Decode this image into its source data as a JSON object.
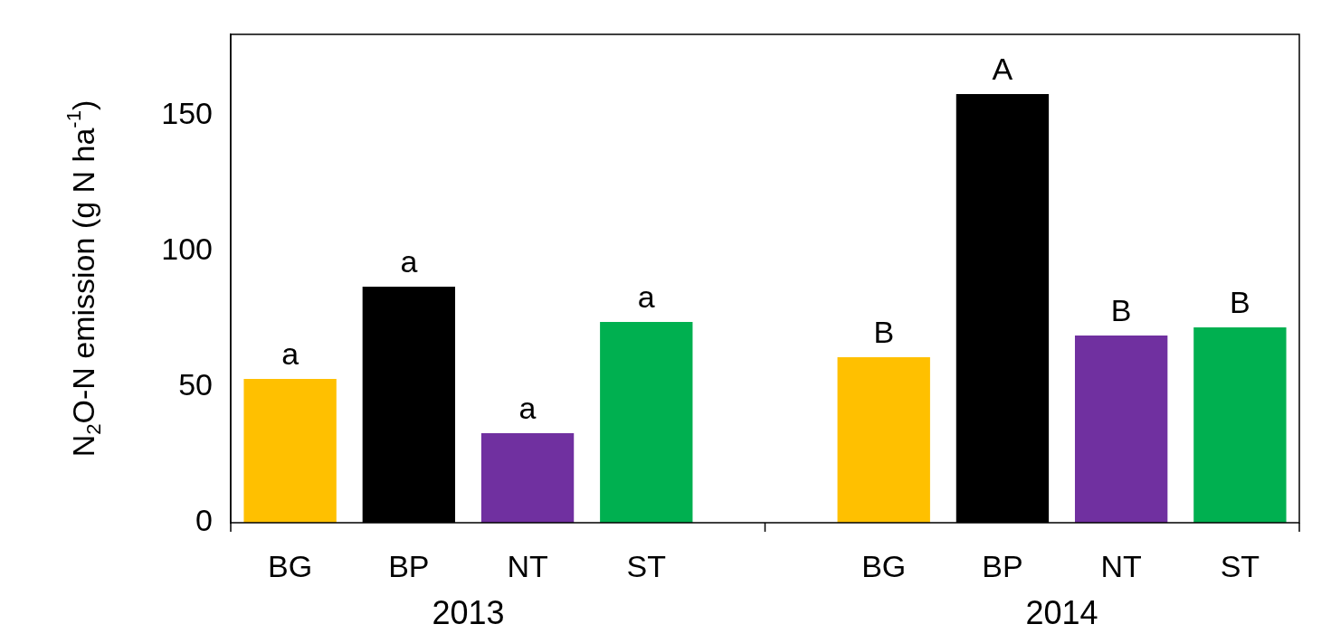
{
  "chart_data": {
    "type": "bar",
    "ylabel": "N$_{2}$O-N emission (g N ha$^{-1}$)",
    "categories": [
      "BG",
      "BP",
      "NT",
      "ST",
      null,
      "BG",
      "BP",
      "NT",
      "ST"
    ],
    "values": [
      53,
      87,
      33,
      74,
      null,
      61,
      158,
      69,
      72
    ],
    "colors": [
      "#ffc000",
      "#000000",
      "#7030a0",
      "#00b050",
      null,
      "#ffc000",
      "#000000",
      "#7030a0",
      "#00b050"
    ],
    "value_labels": [
      "a",
      "a",
      "a",
      "a",
      null,
      "B",
      "A",
      "B",
      "B"
    ],
    "annotations": [
      "2013",
      "2014"
    ],
    "ylim": [
      0,
      180
    ],
    "yticks": [
      0,
      50,
      100,
      150
    ],
    "grid": false,
    "legend": false
  }
}
